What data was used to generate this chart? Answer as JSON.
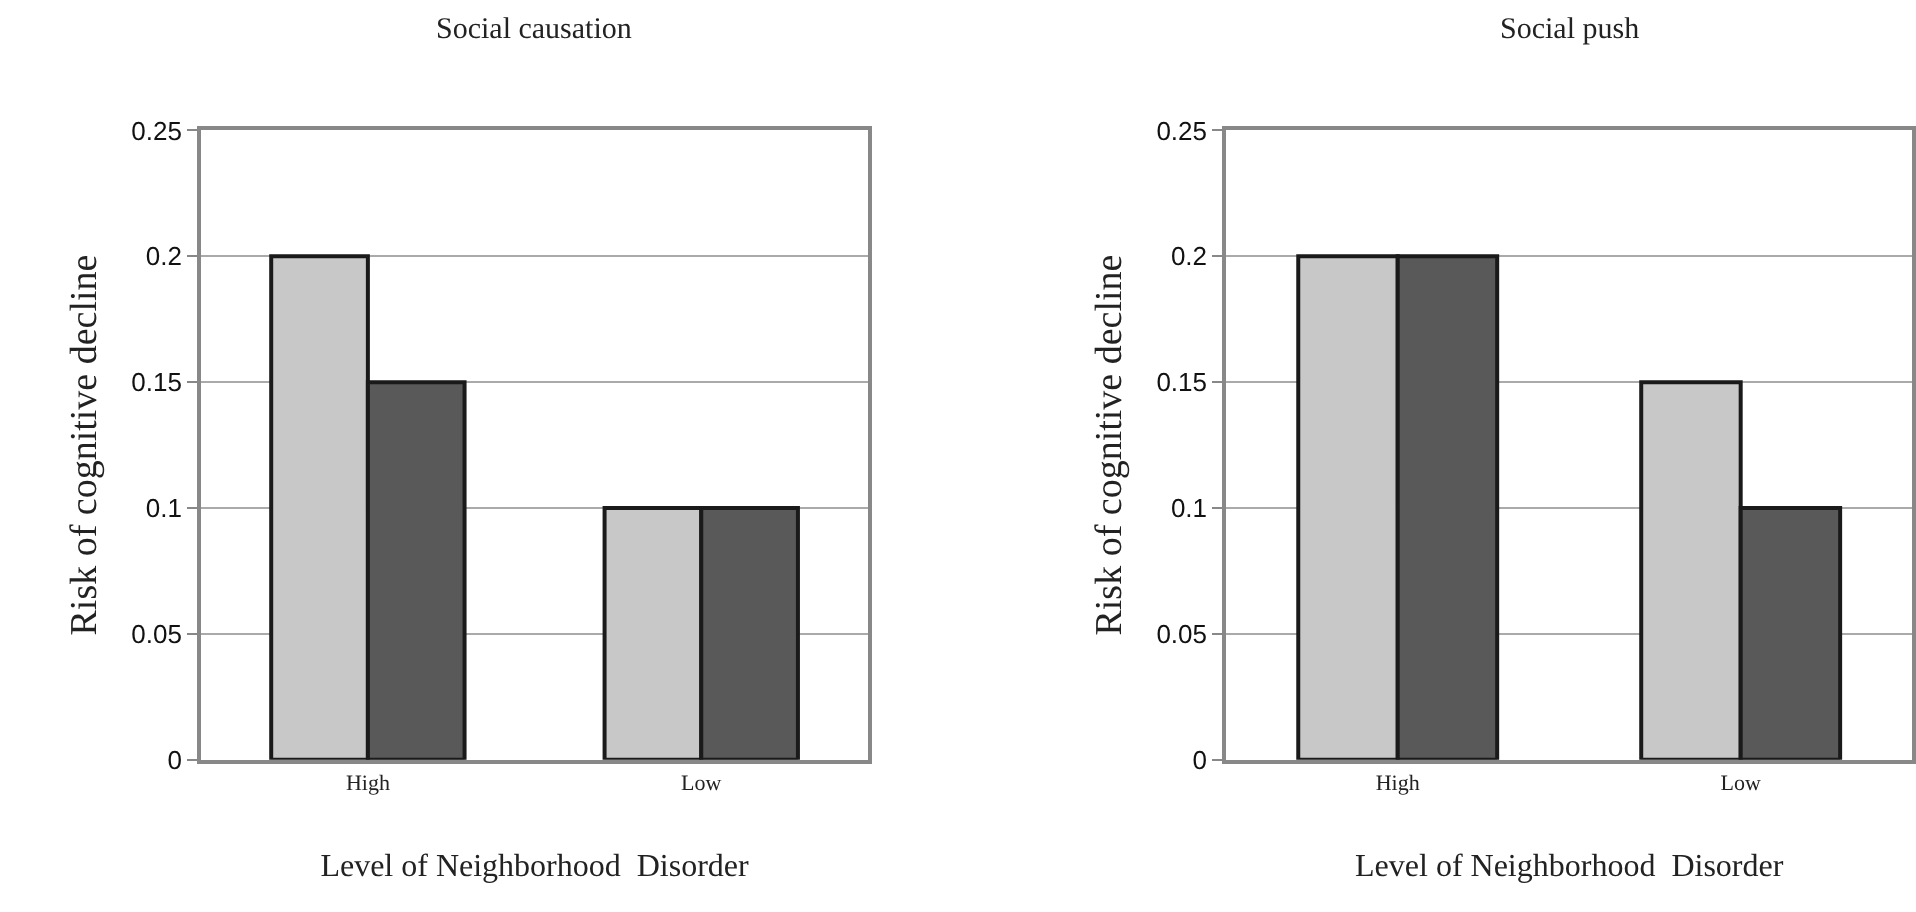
{
  "chart_data": [
    {
      "type": "bar",
      "title": "Social causation",
      "xlabel": "Level of Neighborhood  Disorder",
      "ylabel": "Risk of cognitive decline",
      "categories": [
        "High",
        "Low"
      ],
      "series": [
        {
          "color": "#c8c8c8",
          "values": [
            0.2,
            0.1
          ]
        },
        {
          "color": "#595959",
          "values": [
            0.15,
            0.1
          ]
        }
      ],
      "ylim": [
        0,
        0.25
      ],
      "yticks": [
        0,
        0.05,
        0.1,
        0.15,
        0.2,
        0.25
      ],
      "grid": "y"
    },
    {
      "type": "bar",
      "title": "Social push",
      "xlabel": "Level of Neighborhood  Disorder",
      "ylabel": "Risk of cognitive decline",
      "categories": [
        "High",
        "Low"
      ],
      "series": [
        {
          "color": "#c8c8c8",
          "values": [
            0.2,
            0.15
          ]
        },
        {
          "color": "#595959",
          "values": [
            0.2,
            0.1
          ]
        }
      ],
      "ylim": [
        0,
        0.25
      ],
      "yticks": [
        0,
        0.05,
        0.1,
        0.15,
        0.2,
        0.25
      ],
      "grid": "y"
    }
  ]
}
